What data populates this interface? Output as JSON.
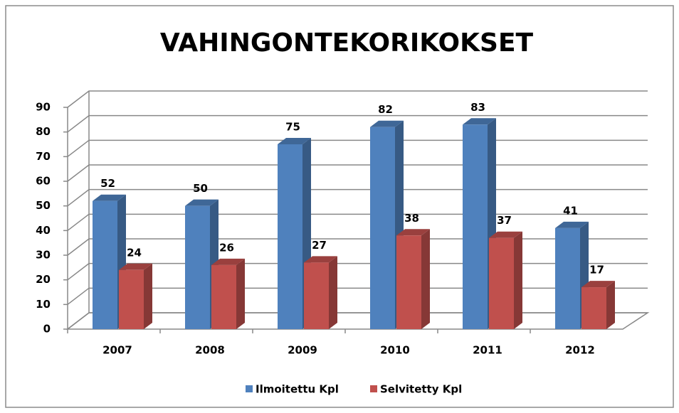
{
  "chart_data": {
    "type": "bar",
    "title": "VAHINGONTEKORIKOKSET",
    "categories": [
      "2007",
      "2008",
      "2009",
      "2010",
      "2011",
      "2012"
    ],
    "series": [
      {
        "name": "Ilmoitettu Kpl",
        "color": "#4f81bd",
        "values": [
          52,
          50,
          75,
          82,
          83,
          41
        ]
      },
      {
        "name": "Selvitetty Kpl",
        "color": "#c0504d",
        "values": [
          24,
          26,
          27,
          38,
          37,
          17
        ]
      }
    ],
    "ylim": [
      0,
      90
    ],
    "yticks": [
      0,
      10,
      20,
      30,
      40,
      50,
      60,
      70,
      80,
      90
    ],
    "grid": true,
    "legend": "bottom"
  }
}
